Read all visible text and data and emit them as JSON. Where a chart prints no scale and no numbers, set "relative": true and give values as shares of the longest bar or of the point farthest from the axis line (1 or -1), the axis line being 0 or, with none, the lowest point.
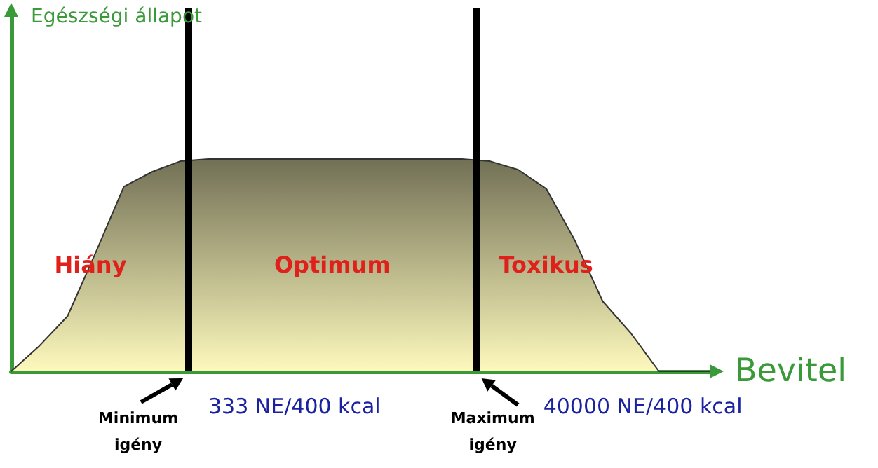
{
  "chart_data": {
    "type": "area",
    "relative": true,
    "xlabel": "Bevitel",
    "categories": [
      null,
      null,
      null,
      null,
      null,
      null,
      null,
      null,
      null,
      null,
      null,
      null,
      null,
      null,
      null,
      null,
      null,
      null,
      null,
      null,
      null,
      null,
      null,
      null,
      null,
      null
    ],
    "series": [
      {
        "color": "#fdf9bd",
        "values": [
          0,
          0.12,
          0.26,
          0.56,
          0.87,
          0.94,
          0.99,
          1,
          1,
          1,
          1,
          1,
          1,
          1,
          1,
          1,
          1,
          0.99,
          0.95,
          0.86,
          0.62,
          0.33,
          0.18,
          0,
          0,
          0
        ]
      }
    ],
    "annotations": [
      "Egészségi állapot",
      "Hiány",
      "Optimum",
      "Toxikus",
      "Minimum igény",
      "333 NE/400 kcal",
      "Maximum igény",
      "40000 NE/400 kcal"
    ],
    "grid": false,
    "marker": "none"
  }
}
